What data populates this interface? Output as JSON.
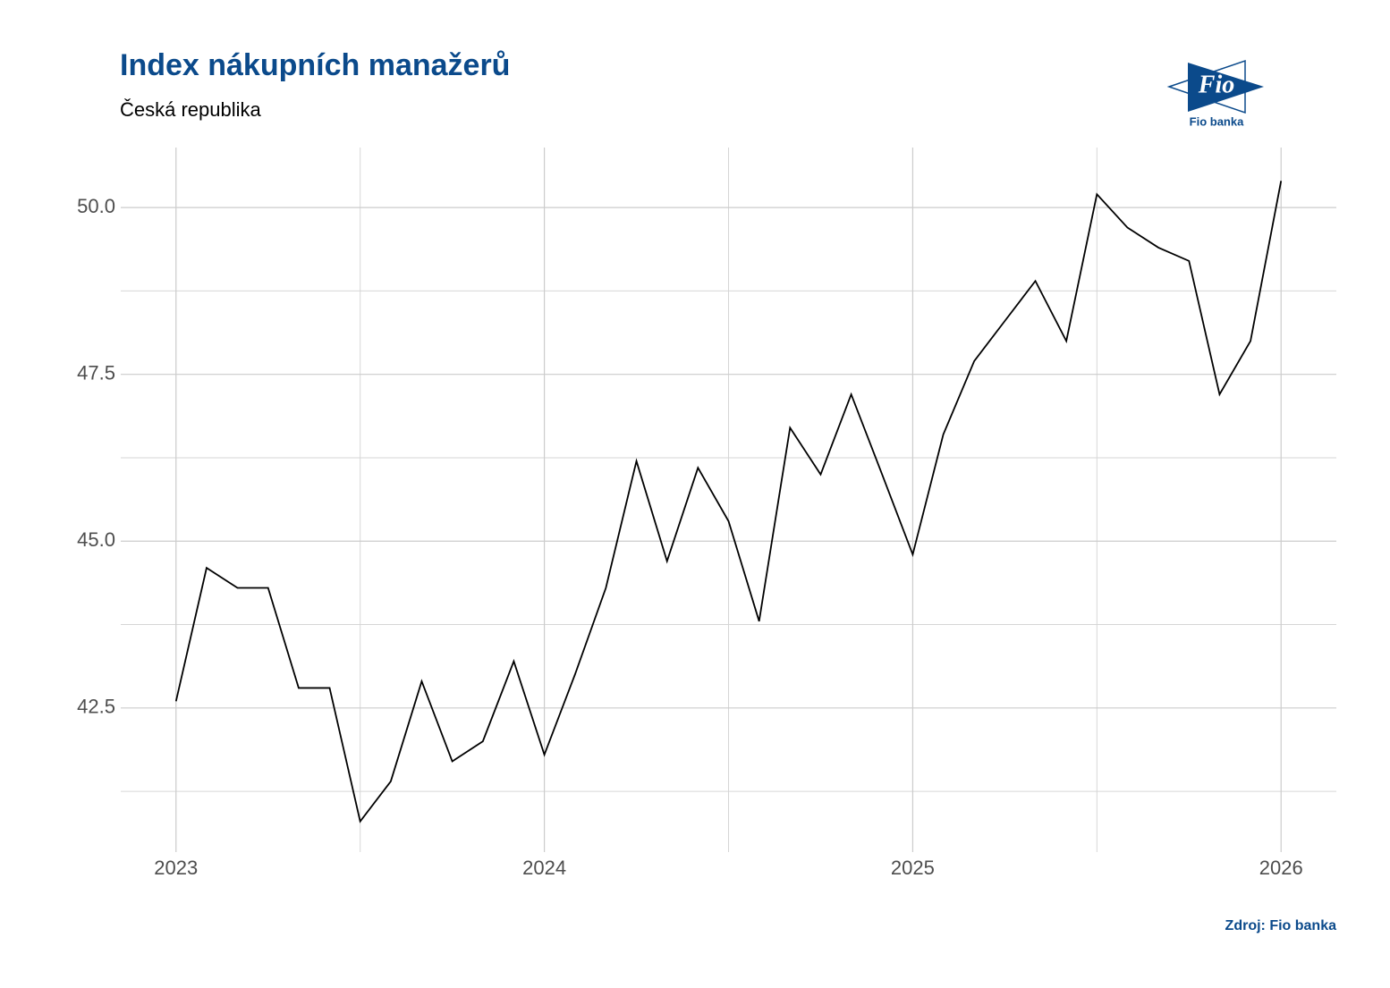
{
  "chart_data": {
    "type": "line",
    "title": "Index nákupních manažerů",
    "subtitle": "Česká republika",
    "source": "Zdroj: Fio banka",
    "logo": {
      "mark": "Fio",
      "text": "Fio banka"
    },
    "x": [
      2023,
      2023.083,
      2023.167,
      2023.25,
      2023.333,
      2023.417,
      2023.5,
      2023.583,
      2023.667,
      2023.75,
      2023.833,
      2023.917,
      2024,
      2024.083,
      2024.167,
      2024.25,
      2024.333,
      2024.417,
      2024.5,
      2024.583,
      2024.667,
      2024.75,
      2024.833,
      2024.917,
      2025,
      2025.083,
      2025.167,
      2025.25,
      2025.333,
      2025.417,
      2025.5,
      2025.583,
      2025.667,
      2025.75,
      2025.833,
      2025.917,
      2026
    ],
    "series": [
      {
        "color": "#000000",
        "values": [
          42.6,
          44.6,
          44.3,
          44.3,
          42.8,
          42.8,
          40.8,
          41.4,
          42.9,
          41.7,
          42.0,
          43.2,
          41.8,
          43.0,
          44.3,
          46.2,
          44.7,
          46.1,
          45.3,
          43.8,
          46.7,
          46.0,
          47.2,
          46.0,
          44.8,
          46.6,
          47.7,
          48.3,
          48.9,
          48.0,
          50.2,
          49.7,
          49.4,
          49.2,
          47.2,
          48.0,
          50.4
        ]
      }
    ],
    "xlim": [
      2022.85,
      2026.15
    ],
    "xticks": [
      2023,
      2024,
      2025,
      2026
    ],
    "xminor": [
      2023.5,
      2024.5,
      2025.5
    ],
    "ylim": [
      40.34,
      50.9
    ],
    "yticks": [
      {
        "value": 42.5,
        "label": "42.5"
      },
      {
        "value": 45,
        "label": "45.0"
      },
      {
        "value": 47.5,
        "label": "47.5"
      },
      {
        "value": 50,
        "label": "50.0"
      }
    ],
    "yminor": [
      41.25,
      43.75,
      46.25,
      48.75
    ],
    "grid": true
  }
}
